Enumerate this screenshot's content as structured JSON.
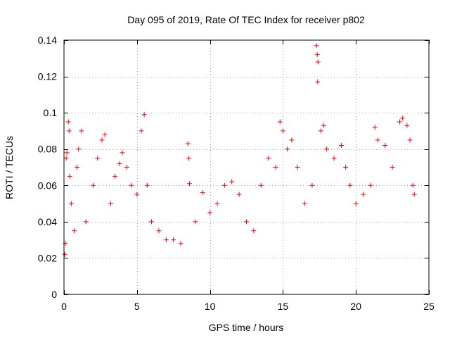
{
  "chart_data": {
    "type": "scatter",
    "title": "Day 095 of 2019, Rate Of TEC Index for receiver p802",
    "xlabel": "GPS time / hours",
    "ylabel": "ROTI / TECUs",
    "xlim": [
      0,
      25
    ],
    "ylim": [
      0,
      0.14
    ],
    "grid": true,
    "xticks": [
      0,
      5,
      10,
      15,
      20,
      25
    ],
    "xtick_labels": [
      "0",
      "5",
      "10",
      "15",
      "20",
      "25"
    ],
    "yticks": [
      0,
      0.02,
      0.04,
      0.06,
      0.08,
      0.1,
      0.12,
      0.14
    ],
    "ytick_labels": [
      "0",
      "0.02",
      "0.04",
      "0.06",
      "0.08",
      "0.1",
      "0.12",
      "0.14"
    ],
    "marker": "+",
    "color": "#ff0000",
    "series": [
      {
        "name": "ROTI",
        "points": [
          [
            0.05,
            0.022
          ],
          [
            0.1,
            0.028
          ],
          [
            0.15,
            0.075
          ],
          [
            0.2,
            0.078
          ],
          [
            0.3,
            0.095
          ],
          [
            0.35,
            0.09
          ],
          [
            0.4,
            0.065
          ],
          [
            0.5,
            0.05
          ],
          [
            0.7,
            0.035
          ],
          [
            0.9,
            0.07
          ],
          [
            1.0,
            0.08
          ],
          [
            1.2,
            0.09
          ],
          [
            1.5,
            0.04
          ],
          [
            2.0,
            0.06
          ],
          [
            2.3,
            0.075
          ],
          [
            2.6,
            0.085
          ],
          [
            2.8,
            0.088
          ],
          [
            3.2,
            0.05
          ],
          [
            3.5,
            0.065
          ],
          [
            3.8,
            0.072
          ],
          [
            4.0,
            0.078
          ],
          [
            4.3,
            0.07
          ],
          [
            4.6,
            0.06
          ],
          [
            5.0,
            0.055
          ],
          [
            5.3,
            0.09
          ],
          [
            5.5,
            0.099
          ],
          [
            5.7,
            0.06
          ],
          [
            6.0,
            0.04
          ],
          [
            6.5,
            0.035
          ],
          [
            7.0,
            0.03
          ],
          [
            7.5,
            0.03
          ],
          [
            8.0,
            0.028
          ],
          [
            8.5,
            0.083
          ],
          [
            8.55,
            0.075
          ],
          [
            8.6,
            0.061
          ],
          [
            9.0,
            0.04
          ],
          [
            9.5,
            0.056
          ],
          [
            10.0,
            0.045
          ],
          [
            10.5,
            0.05
          ],
          [
            11.0,
            0.06
          ],
          [
            11.5,
            0.062
          ],
          [
            12.0,
            0.055
          ],
          [
            12.5,
            0.04
          ],
          [
            13.0,
            0.035
          ],
          [
            13.5,
            0.06
          ],
          [
            14.0,
            0.075
          ],
          [
            14.5,
            0.07
          ],
          [
            14.8,
            0.095
          ],
          [
            15.0,
            0.09
          ],
          [
            15.3,
            0.08
          ],
          [
            15.6,
            0.085
          ],
          [
            16.0,
            0.07
          ],
          [
            16.5,
            0.05
          ],
          [
            17.0,
            0.06
          ],
          [
            17.3,
            0.137
          ],
          [
            17.35,
            0.132
          ],
          [
            17.4,
            0.128
          ],
          [
            17.38,
            0.117
          ],
          [
            17.6,
            0.09
          ],
          [
            17.8,
            0.093
          ],
          [
            18.0,
            0.08
          ],
          [
            18.5,
            0.075
          ],
          [
            19.0,
            0.082
          ],
          [
            19.3,
            0.07
          ],
          [
            19.6,
            0.06
          ],
          [
            20.0,
            0.05
          ],
          [
            20.5,
            0.055
          ],
          [
            21.0,
            0.06
          ],
          [
            21.3,
            0.092
          ],
          [
            21.5,
            0.085
          ],
          [
            22.0,
            0.082
          ],
          [
            22.5,
            0.07
          ],
          [
            23.0,
            0.095
          ],
          [
            23.2,
            0.097
          ],
          [
            23.5,
            0.093
          ],
          [
            23.7,
            0.085
          ],
          [
            23.9,
            0.06
          ],
          [
            24.0,
            0.055
          ]
        ]
      }
    ]
  }
}
